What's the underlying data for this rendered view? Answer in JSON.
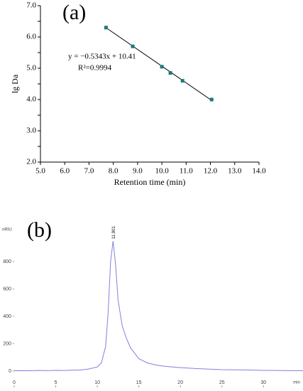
{
  "chart_data": [
    {
      "type": "scatter",
      "panel_label": "(a)",
      "x_label": "Retention time (min)",
      "y_label": "lg Da",
      "annotations": [
        "y = −0.5343x + 10.41",
        "R²=0.9994"
      ],
      "color": "#1a7a78",
      "line_color": "#000000",
      "x": [
        7.7,
        8.8,
        10.0,
        10.35,
        10.85,
        12.05
      ],
      "values": [
        6.3,
        5.7,
        5.05,
        4.85,
        4.6,
        4.0
      ],
      "fit_line": {
        "x": [
          7.7,
          12.05
        ],
        "values": [
          6.296,
          3.972
        ]
      },
      "xlim": [
        5,
        14
      ],
      "ylim": [
        2,
        7
      ],
      "xticks": [
        {
          "value": 5,
          "label": "5.0"
        },
        {
          "value": 6,
          "label": "6.0"
        },
        {
          "value": 7,
          "label": "7.0"
        },
        {
          "value": 8,
          "label": "8.0"
        },
        {
          "value": 9,
          "label": "9.0"
        },
        {
          "value": 10,
          "label": "10.0"
        },
        {
          "value": 11,
          "label": "11.0"
        },
        {
          "value": 12,
          "label": "12.0"
        },
        {
          "value": 13,
          "label": "13.0"
        },
        {
          "value": 14,
          "label": "14.0"
        }
      ],
      "yticks": [
        {
          "value": 2,
          "label": "2.0"
        },
        2.5,
        {
          "value": 3,
          "label": "3.0"
        },
        3.5,
        {
          "value": 4,
          "label": "4.0"
        },
        4.5,
        {
          "value": 5,
          "label": "5.0"
        },
        5.5,
        {
          "value": 6,
          "label": "6.0"
        },
        6.5,
        {
          "value": 7,
          "label": "7.0"
        }
      ]
    },
    {
      "type": "line",
      "panel_label": "(b)",
      "x_label": "min",
      "y_label": "nRIU",
      "peak_label": "11.901",
      "color": "#8080e0",
      "x": [
        0,
        1,
        2,
        3,
        4,
        5,
        6,
        7,
        8,
        9,
        10,
        10.5,
        11,
        11.3,
        11.6,
        11.9,
        12.2,
        12.5,
        13,
        13.5,
        14,
        15,
        16,
        17,
        18,
        20,
        22,
        25,
        28,
        30,
        33,
        35
      ],
      "values": [
        2,
        3,
        2,
        4,
        3,
        5,
        4,
        6,
        8,
        15,
        30,
        60,
        180,
        420,
        800,
        950,
        780,
        520,
        330,
        240,
        170,
        90,
        60,
        45,
        35,
        25,
        18,
        10,
        8,
        5,
        3,
        2
      ],
      "xlim": [
        0,
        34.5
      ],
      "ylim": [
        -120,
        1070
      ],
      "xticks": [
        0,
        5,
        10,
        15,
        20,
        25,
        30
      ],
      "yticks": [
        0,
        200,
        400,
        600,
        800
      ]
    }
  ]
}
